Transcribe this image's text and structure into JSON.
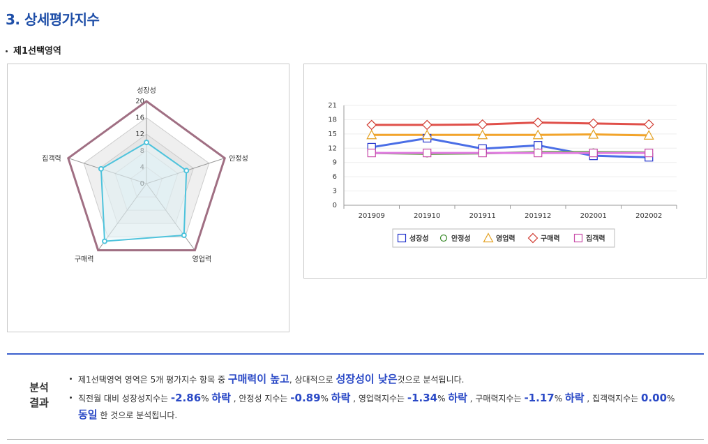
{
  "page": {
    "section_title": "3. 상세평가지수",
    "subsection_title": "제1선택영역"
  },
  "colors": {
    "title": "#1f4fa8",
    "highlight": "#2a49c6",
    "radar_outer": "#a06f83",
    "radar_series": "#4ec3dc",
    "line_성장성": "#4a6ee6",
    "line_안정성": "#6aa84f",
    "line_영업력": "#f2a42b",
    "line_구매력": "#e0504a",
    "line_집객력": "#e07ae0"
  },
  "chart_data": [
    {
      "type": "radar",
      "axes": [
        "성장성",
        "안정성",
        "영업력",
        "구매력",
        "집객력"
      ],
      "ticks": [
        "0",
        "4",
        "8",
        "12",
        "16",
        "20"
      ],
      "rlim": [
        0,
        20
      ],
      "series": [
        {
          "values": [
            10,
            10.2,
            15.5,
            17.3,
            11.6
          ]
        },
        {
          "values": [
            20,
            20,
            20,
            20,
            20
          ]
        }
      ],
      "grid": true
    },
    {
      "type": "line",
      "categories": [
        "201909",
        "201910",
        "201911",
        "201912",
        "202001",
        "202002"
      ],
      "ylim": [
        0,
        21
      ],
      "yticks": [
        "0",
        "3",
        "6",
        "9",
        "12",
        "15",
        "18",
        "21"
      ],
      "series": [
        {
          "name": "성장성",
          "marker": "square",
          "values": [
            12.2,
            14.1,
            11.9,
            12.6,
            10.4,
            10.1
          ]
        },
        {
          "name": "안정성",
          "marker": "circle",
          "values": [
            11.0,
            10.8,
            10.9,
            11.2,
            11.2,
            11.1
          ]
        },
        {
          "name": "영업력",
          "marker": "triangle",
          "values": [
            14.8,
            14.8,
            14.8,
            14.8,
            14.9,
            14.7
          ]
        },
        {
          "name": "구매력",
          "marker": "diamond",
          "values": [
            16.9,
            16.9,
            17.0,
            17.4,
            17.2,
            17.0
          ]
        },
        {
          "name": "집객력",
          "marker": "square",
          "values": [
            11.0,
            11.0,
            11.0,
            11.0,
            11.0,
            11.0
          ]
        }
      ],
      "legend": "bottom",
      "grid": true
    }
  ],
  "analysis": {
    "label_line1": "분석",
    "label_line2": "결과",
    "l1_a": "제1선택영역 영역은 5개 평가지수 항목 중 ",
    "l1_hl1": "구매력이 높고",
    "l1_b": ", 상대적으로 ",
    "l1_hl2": "성장성이 낮은",
    "l1_c": "것으로 분석됩니다.",
    "l2_a": "직전월 대비 성장성지수는 ",
    "l2_v1": "-2.86",
    "l2_u1": "% ",
    "l2_t1": "하락",
    "l2_b": " , 안정성 지수는 ",
    "l2_v2": "-0.89",
    "l2_u2": "% ",
    "l2_t2": "하락",
    "l2_c": " , 영업력지수는 ",
    "l2_v3": "-1.34",
    "l2_u3": "% ",
    "l2_t3": "하락",
    "l2_d": " , 구매력지수는 ",
    "l2_v4": "-1.17",
    "l2_u4": "% ",
    "l2_t4": "하락",
    "l2_e": " , 집객력지수는 ",
    "l2_v5": "0.00",
    "l2_u5": "%",
    "l3_t5": "동일",
    "l3_a": " 한 것으로 분석됩니다."
  }
}
